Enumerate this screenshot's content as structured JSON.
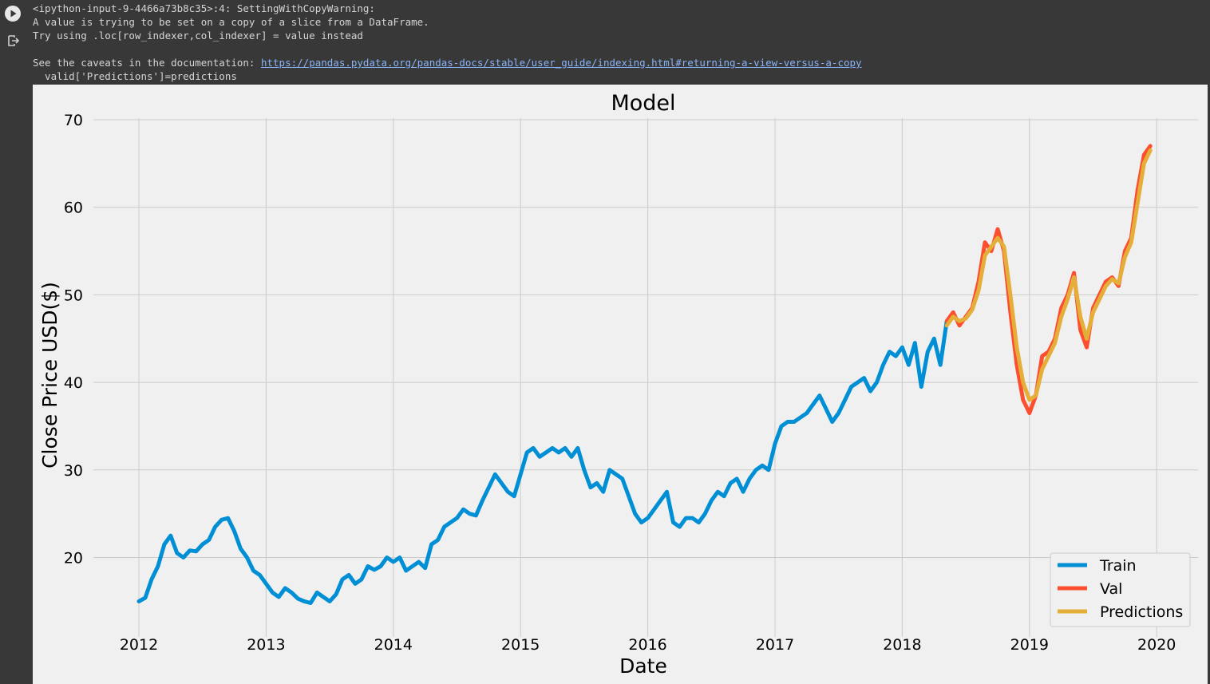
{
  "cell": {
    "run_icon": "play-circle-icon",
    "output_icon": "output-arrow-icon"
  },
  "output": {
    "line1": "<ipython-input-9-4466a73b8c35>:4: SettingWithCopyWarning:",
    "line2": "A value is trying to be set on a copy of a slice from a DataFrame.",
    "line3": "Try using .loc[row_indexer,col_indexer] = value instead",
    "line4_prefix": "See the caveats in the documentation: ",
    "link": "https://pandas.pydata.org/pandas-docs/stable/user_guide/indexing.html#returning-a-view-versus-a-copy",
    "line5": "  valid['Predictions']=predictions"
  },
  "chart_data": {
    "type": "line",
    "title": "Model",
    "xlabel": "Date",
    "ylabel": "Close Price USD($)",
    "xlim": [
      2011.7,
      2020.3
    ],
    "ylim": [
      12.5,
      71
    ],
    "x_ticks": [
      "2012",
      "2013",
      "2014",
      "2015",
      "2016",
      "2017",
      "2018",
      "2019",
      "2020"
    ],
    "y_ticks": [
      20,
      30,
      40,
      50,
      60,
      70
    ],
    "grid": true,
    "legend": "bottom-right",
    "colors": {
      "Train": "#008fd5",
      "Val": "#fc4f30",
      "Predictions": "#e5ae38"
    },
    "series": [
      {
        "name": "Train",
        "x": [
          2012.0,
          2012.05,
          2012.1,
          2012.15,
          2012.2,
          2012.25,
          2012.3,
          2012.35,
          2012.4,
          2012.45,
          2012.5,
          2012.55,
          2012.6,
          2012.65,
          2012.7,
          2012.75,
          2012.8,
          2012.85,
          2012.9,
          2012.95,
          2013.0,
          2013.05,
          2013.1,
          2013.15,
          2013.2,
          2013.25,
          2013.3,
          2013.35,
          2013.4,
          2013.45,
          2013.5,
          2013.55,
          2013.6,
          2013.65,
          2013.7,
          2013.75,
          2013.8,
          2013.85,
          2013.9,
          2013.95,
          2014.0,
          2014.05,
          2014.1,
          2014.15,
          2014.2,
          2014.25,
          2014.3,
          2014.35,
          2014.4,
          2014.45,
          2014.5,
          2014.55,
          2014.6,
          2014.65,
          2014.7,
          2014.75,
          2014.8,
          2014.85,
          2014.9,
          2014.95,
          2015.0,
          2015.05,
          2015.1,
          2015.15,
          2015.2,
          2015.25,
          2015.3,
          2015.35,
          2015.4,
          2015.45,
          2015.5,
          2015.55,
          2015.6,
          2015.65,
          2015.7,
          2015.75,
          2015.8,
          2015.85,
          2015.9,
          2015.95,
          2016.0,
          2016.05,
          2016.1,
          2016.15,
          2016.2,
          2016.25,
          2016.3,
          2016.35,
          2016.4,
          2016.45,
          2016.5,
          2016.55,
          2016.6,
          2016.65,
          2016.7,
          2016.75,
          2016.8,
          2016.85,
          2016.9,
          2016.95,
          2017.0,
          2017.05,
          2017.1,
          2017.15,
          2017.2,
          2017.25,
          2017.3,
          2017.35,
          2017.4,
          2017.45,
          2017.5,
          2017.55,
          2017.6,
          2017.65,
          2017.7,
          2017.75,
          2017.8,
          2017.85,
          2017.9,
          2017.95,
          2018.0,
          2018.05,
          2018.1,
          2018.15,
          2018.2,
          2018.25,
          2018.3,
          2018.35
        ],
        "y": [
          15.0,
          15.4,
          17.5,
          19.0,
          21.5,
          22.5,
          20.5,
          20.0,
          20.8,
          20.7,
          21.5,
          22.0,
          23.5,
          24.3,
          24.5,
          23.0,
          21.0,
          20.0,
          18.5,
          18.0,
          17.0,
          16.0,
          15.5,
          16.5,
          16.0,
          15.3,
          15.0,
          14.8,
          16.0,
          15.5,
          15.0,
          15.8,
          17.5,
          18.0,
          17.0,
          17.5,
          19.0,
          18.6,
          19.0,
          20.0,
          19.5,
          20.0,
          18.5,
          19.0,
          19.5,
          18.8,
          21.5,
          22.0,
          23.5,
          24.0,
          24.5,
          25.5,
          25.0,
          24.8,
          26.5,
          28.0,
          29.5,
          28.5,
          27.5,
          27.0,
          29.5,
          32.0,
          32.5,
          31.5,
          32.0,
          32.5,
          32.0,
          32.5,
          31.5,
          32.5,
          30.0,
          28.0,
          28.5,
          27.5,
          30.0,
          29.5,
          29.0,
          27.0,
          25.0,
          24.0,
          24.5,
          25.5,
          26.5,
          27.5,
          24.0,
          23.5,
          24.5,
          24.5,
          24.0,
          25.0,
          26.5,
          27.5,
          27.0,
          28.5,
          29.0,
          27.5,
          29.0,
          30.0,
          30.5,
          30.0,
          33.0,
          35.0,
          35.5,
          35.5,
          36.0,
          36.5,
          37.5,
          38.5,
          37.0,
          35.5,
          36.5,
          38.0,
          39.5,
          40.0,
          40.5,
          39.0,
          40.0,
          42.0,
          43.5,
          43.0,
          44.0,
          42.0,
          44.5,
          39.5,
          43.5,
          45.0,
          42.0,
          47.0
        ]
      },
      {
        "name": "Val",
        "x": [
          2018.35,
          2018.4,
          2018.45,
          2018.5,
          2018.55,
          2018.6,
          2018.65,
          2018.7,
          2018.75,
          2018.8,
          2018.85,
          2018.9,
          2018.95,
          2019.0,
          2019.05,
          2019.1,
          2019.15,
          2019.2,
          2019.25,
          2019.3,
          2019.35,
          2019.4,
          2019.45,
          2019.5,
          2019.55,
          2019.6,
          2019.65,
          2019.7,
          2019.75,
          2019.8,
          2019.85,
          2019.9,
          2019.95
        ],
        "y": [
          47.0,
          48.0,
          46.5,
          47.5,
          48.5,
          51.5,
          56.0,
          55.0,
          57.5,
          55.0,
          48.0,
          42.0,
          38.0,
          36.5,
          38.5,
          43.0,
          43.5,
          45.0,
          48.5,
          50.0,
          52.5,
          46.0,
          44.0,
          48.5,
          50.0,
          51.5,
          52.0,
          51.0,
          55.0,
          56.5,
          62.0,
          66.0,
          67.0
        ]
      },
      {
        "name": "Predictions",
        "x": [
          2018.35,
          2018.4,
          2018.45,
          2018.5,
          2018.55,
          2018.6,
          2018.65,
          2018.7,
          2018.75,
          2018.8,
          2018.85,
          2018.9,
          2018.95,
          2019.0,
          2019.05,
          2019.1,
          2019.15,
          2019.2,
          2019.25,
          2019.3,
          2019.35,
          2019.4,
          2019.45,
          2019.5,
          2019.55,
          2019.6,
          2019.65,
          2019.7,
          2019.75,
          2019.8,
          2019.85,
          2019.9,
          2019.95
        ],
        "y": [
          46.5,
          47.5,
          47.0,
          47.3,
          48.3,
          50.5,
          54.5,
          55.5,
          56.5,
          55.5,
          50.0,
          44.0,
          40.0,
          38.0,
          38.5,
          41.5,
          43.0,
          44.5,
          47.5,
          49.5,
          52.0,
          47.5,
          45.0,
          48.0,
          49.5,
          51.0,
          51.8,
          51.3,
          54.3,
          56.0,
          60.5,
          65.0,
          66.5
        ]
      }
    ]
  }
}
